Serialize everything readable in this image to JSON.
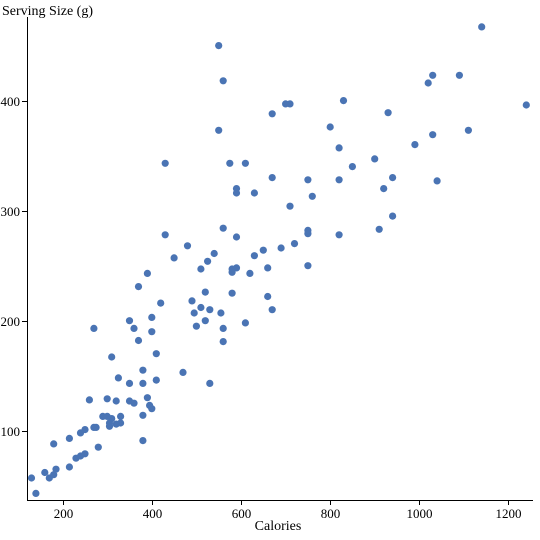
{
  "chart_data": {
    "type": "scatter",
    "title": "",
    "xlabel": "Calories",
    "ylabel": "Serving Size (g)",
    "xlim": [
      120,
      1255
    ],
    "ylim": [
      37,
      476
    ],
    "xticks": [
      200,
      400,
      600,
      800,
      1000,
      1200
    ],
    "yticks": [
      100,
      200,
      300,
      400
    ],
    "xtick_labels": [
      "200",
      "400",
      "600",
      "800",
      "1000",
      "1200"
    ],
    "ytick_labels": [
      "100",
      "200",
      "300",
      "400"
    ],
    "grid": false,
    "legend": null,
    "point_color": "#4a74b4",
    "points": [
      [
        130,
        57
      ],
      [
        140,
        43
      ],
      [
        160,
        62
      ],
      [
        170,
        57
      ],
      [
        180,
        60
      ],
      [
        180,
        88
      ],
      [
        185,
        65
      ],
      [
        215,
        93
      ],
      [
        215,
        67
      ],
      [
        230,
        75
      ],
      [
        240,
        98
      ],
      [
        240,
        77
      ],
      [
        250,
        101
      ],
      [
        250,
        79
      ],
      [
        260,
        128
      ],
      [
        270,
        193
      ],
      [
        270,
        103
      ],
      [
        275,
        103
      ],
      [
        280,
        85
      ],
      [
        290,
        113
      ],
      [
        300,
        113
      ],
      [
        300,
        129
      ],
      [
        305,
        104
      ],
      [
        305,
        107
      ],
      [
        310,
        167
      ],
      [
        310,
        111
      ],
      [
        320,
        106
      ],
      [
        320,
        127
      ],
      [
        325,
        148
      ],
      [
        330,
        113
      ],
      [
        330,
        107
      ],
      [
        350,
        127
      ],
      [
        350,
        143
      ],
      [
        350,
        200
      ],
      [
        360,
        125
      ],
      [
        360,
        193
      ],
      [
        370,
        182
      ],
      [
        370,
        231
      ],
      [
        380,
        143
      ],
      [
        380,
        114
      ],
      [
        380,
        91
      ],
      [
        380,
        155
      ],
      [
        390,
        243
      ],
      [
        390,
        130
      ],
      [
        395,
        123
      ],
      [
        400,
        190
      ],
      [
        400,
        203
      ],
      [
        400,
        120
      ],
      [
        410,
        170
      ],
      [
        410,
        146
      ],
      [
        420,
        216
      ],
      [
        430,
        343
      ],
      [
        430,
        278
      ],
      [
        450,
        257
      ],
      [
        470,
        153
      ],
      [
        480,
        268
      ],
      [
        490,
        218
      ],
      [
        495,
        207
      ],
      [
        500,
        195
      ],
      [
        510,
        212
      ],
      [
        510,
        247
      ],
      [
        520,
        200
      ],
      [
        520,
        226
      ],
      [
        525,
        254
      ],
      [
        530,
        143
      ],
      [
        530,
        210
      ],
      [
        540,
        261
      ],
      [
        550,
        450
      ],
      [
        550,
        373
      ],
      [
        555,
        207
      ],
      [
        560,
        418
      ],
      [
        560,
        181
      ],
      [
        560,
        284
      ],
      [
        560,
        193
      ],
      [
        575,
        343
      ],
      [
        580,
        247
      ],
      [
        580,
        244
      ],
      [
        580,
        225
      ],
      [
        590,
        248
      ],
      [
        590,
        320
      ],
      [
        590,
        316
      ],
      [
        590,
        276
      ],
      [
        610,
        343
      ],
      [
        610,
        198
      ],
      [
        620,
        243
      ],
      [
        630,
        259
      ],
      [
        630,
        316
      ],
      [
        650,
        264
      ],
      [
        660,
        222
      ],
      [
        660,
        248
      ],
      [
        670,
        388
      ],
      [
        670,
        330
      ],
      [
        670,
        210
      ],
      [
        690,
        266
      ],
      [
        700,
        397
      ],
      [
        710,
        397
      ],
      [
        710,
        304
      ],
      [
        720,
        270
      ],
      [
        750,
        328
      ],
      [
        750,
        282
      ],
      [
        750,
        279
      ],
      [
        750,
        250
      ],
      [
        760,
        313
      ],
      [
        800,
        376
      ],
      [
        820,
        357
      ],
      [
        820,
        328
      ],
      [
        820,
        278
      ],
      [
        830,
        400
      ],
      [
        850,
        340
      ],
      [
        900,
        347
      ],
      [
        910,
        283
      ],
      [
        920,
        320
      ],
      [
        930,
        389
      ],
      [
        940,
        295
      ],
      [
        940,
        330
      ],
      [
        990,
        360
      ],
      [
        1020,
        416
      ],
      [
        1030,
        423
      ],
      [
        1030,
        369
      ],
      [
        1040,
        327
      ],
      [
        1090,
        423
      ],
      [
        1110,
        373
      ],
      [
        1140,
        467
      ],
      [
        1240,
        396
      ]
    ]
  }
}
